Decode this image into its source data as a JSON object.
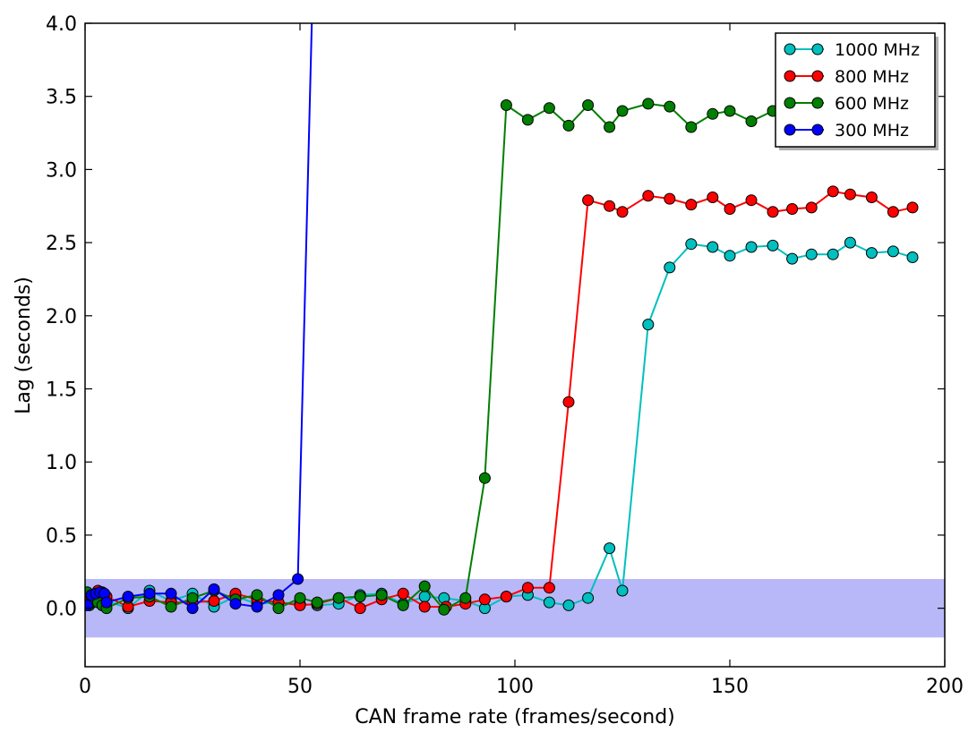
{
  "chart_data": {
    "type": "line",
    "title": "",
    "xlabel": "CAN frame rate (frames/second)",
    "ylabel": "Lag (seconds)",
    "xlim": [
      0,
      200
    ],
    "ylim": [
      -0.4,
      4.0
    ],
    "x_ticks": [
      0,
      50,
      100,
      150,
      200
    ],
    "x_tick_labels": [
      "0",
      "50",
      "100",
      "150",
      "200"
    ],
    "y_ticks": [
      0.0,
      0.5,
      1.0,
      1.5,
      2.0,
      2.5,
      3.0,
      3.5,
      4.0
    ],
    "y_tick_labels": [
      "0.0",
      "0.5",
      "1.0",
      "1.5",
      "2.0",
      "2.5",
      "3.0",
      "3.5",
      "4.0"
    ],
    "grid": false,
    "legend_position": "top-right",
    "band": {
      "y_min": -0.2,
      "y_max": 0.2,
      "color": "#b8b8f8"
    },
    "series": [
      {
        "name": "1000 MHz",
        "color": "#00bfbf",
        "points": [
          [
            0.5,
            0.05
          ],
          [
            1,
            0.02
          ],
          [
            2,
            0.06
          ],
          [
            3,
            0.1
          ],
          [
            4,
            0.02
          ],
          [
            5,
            0.05
          ],
          [
            10,
            0.0
          ],
          [
            15,
            0.12
          ],
          [
            20,
            0.05
          ],
          [
            25,
            0.1
          ],
          [
            30,
            0.01
          ],
          [
            35,
            0.08
          ],
          [
            40,
            0.03
          ],
          [
            45,
            0.04
          ],
          [
            50,
            0.03
          ],
          [
            54,
            0.02
          ],
          [
            59,
            0.03
          ],
          [
            64,
            0.09
          ],
          [
            69,
            0.1
          ],
          [
            74,
            0.03
          ],
          [
            79,
            0.08
          ],
          [
            83.5,
            0.07
          ],
          [
            88.5,
            0.05
          ],
          [
            93,
            0.0
          ],
          [
            98,
            0.08
          ],
          [
            103,
            0.09
          ],
          [
            108,
            0.04
          ],
          [
            112.5,
            0.02
          ],
          [
            117,
            0.07
          ],
          [
            122,
            0.41
          ],
          [
            125,
            0.12
          ],
          [
            131,
            1.94
          ],
          [
            136,
            2.33
          ],
          [
            141,
            2.49
          ],
          [
            146,
            2.47
          ],
          [
            150,
            2.41
          ],
          [
            155,
            2.47
          ],
          [
            160,
            2.48
          ],
          [
            164.5,
            2.39
          ],
          [
            169,
            2.42
          ],
          [
            174,
            2.42
          ],
          [
            178,
            2.5
          ],
          [
            183,
            2.43
          ],
          [
            188,
            2.44
          ],
          [
            192.5,
            2.4
          ]
        ]
      },
      {
        "name": "800 MHz",
        "color": "#ff0000",
        "points": [
          [
            0.5,
            0.03
          ],
          [
            1,
            0.06
          ],
          [
            2,
            0.07
          ],
          [
            3,
            0.12
          ],
          [
            4,
            0.11
          ],
          [
            5,
            0.08
          ],
          [
            10,
            0.01
          ],
          [
            15,
            0.05
          ],
          [
            20,
            0.04
          ],
          [
            25,
            0.04
          ],
          [
            30,
            0.05
          ],
          [
            35,
            0.1
          ],
          [
            40,
            0.06
          ],
          [
            45,
            0.04
          ],
          [
            50,
            0.02
          ],
          [
            54,
            0.03
          ],
          [
            59,
            0.07
          ],
          [
            64,
            0.0
          ],
          [
            69,
            0.06
          ],
          [
            74,
            0.1
          ],
          [
            79,
            0.01
          ],
          [
            84,
            0.01
          ],
          [
            88.5,
            0.03
          ],
          [
            93,
            0.06
          ],
          [
            98,
            0.08
          ],
          [
            103,
            0.14
          ],
          [
            108,
            0.14
          ],
          [
            112.5,
            1.41
          ],
          [
            117,
            2.79
          ],
          [
            122,
            2.75
          ],
          [
            125,
            2.71
          ],
          [
            131,
            2.82
          ],
          [
            136,
            2.8
          ],
          [
            141,
            2.76
          ],
          [
            146,
            2.81
          ],
          [
            150,
            2.73
          ],
          [
            155,
            2.79
          ],
          [
            160,
            2.71
          ],
          [
            164.5,
            2.73
          ],
          [
            169,
            2.74
          ],
          [
            174,
            2.85
          ],
          [
            178,
            2.83
          ],
          [
            183,
            2.81
          ],
          [
            188,
            2.71
          ],
          [
            192.5,
            2.74
          ]
        ]
      },
      {
        "name": "600 MHz",
        "color": "#007f00",
        "points": [
          [
            0.5,
            0.11
          ],
          [
            1,
            0.03
          ],
          [
            2,
            0.09
          ],
          [
            3,
            0.04
          ],
          [
            4,
            0.02
          ],
          [
            5,
            0.0
          ],
          [
            10,
            0.07
          ],
          [
            15,
            0.08
          ],
          [
            20,
            0.01
          ],
          [
            25,
            0.07
          ],
          [
            30,
            0.12
          ],
          [
            35,
            0.06
          ],
          [
            40,
            0.09
          ],
          [
            45,
            0.0
          ],
          [
            50,
            0.07
          ],
          [
            54,
            0.04
          ],
          [
            59,
            0.07
          ],
          [
            64,
            0.08
          ],
          [
            69,
            0.09
          ],
          [
            74,
            0.02
          ],
          [
            79,
            0.15
          ],
          [
            83.5,
            -0.01
          ],
          [
            88.5,
            0.07
          ],
          [
            93,
            0.89
          ],
          [
            98,
            3.44
          ],
          [
            103,
            3.34
          ],
          [
            108,
            3.42
          ],
          [
            112.5,
            3.3
          ],
          [
            117,
            3.44
          ],
          [
            122,
            3.29
          ],
          [
            125,
            3.4
          ],
          [
            131,
            3.45
          ],
          [
            136,
            3.43
          ],
          [
            141,
            3.29
          ],
          [
            146,
            3.38
          ],
          [
            150,
            3.4
          ],
          [
            155,
            3.33
          ],
          [
            160,
            3.4
          ]
        ]
      },
      {
        "name": "300 MHz",
        "color": "#0000ff",
        "points": [
          [
            0.5,
            0.02
          ],
          [
            1.5,
            0.09
          ],
          [
            2.5,
            0.1
          ],
          [
            3.5,
            0.11
          ],
          [
            4.5,
            0.1
          ],
          [
            5,
            0.04
          ],
          [
            10,
            0.08
          ],
          [
            15,
            0.1
          ],
          [
            20,
            0.1
          ],
          [
            25,
            0.0
          ],
          [
            30,
            0.13
          ],
          [
            35,
            0.03
          ],
          [
            40,
            0.01
          ],
          [
            45,
            0.09
          ],
          [
            49.5,
            0.2
          ],
          [
            53,
            4.3
          ]
        ]
      }
    ]
  }
}
